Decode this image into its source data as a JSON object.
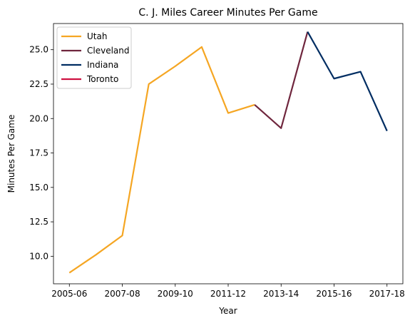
{
  "chart_data": {
    "type": "line",
    "title": "C. J. Miles Career Minutes Per Game",
    "xlabel": "Year",
    "ylabel": "Minutes Per Game",
    "x_ticks": [
      "2005-06",
      "2007-08",
      "2009-10",
      "2011-12",
      "2013-14",
      "2015-16",
      "2017-18"
    ],
    "ylim": [
      8.0,
      26.9
    ],
    "y_ticks": [
      "10.0",
      "12.5",
      "15.0",
      "17.5",
      "20.0",
      "22.5",
      "25.0"
    ],
    "y_tick_values": [
      10.0,
      12.5,
      15.0,
      17.5,
      20.0,
      22.5,
      25.0
    ],
    "grid": false,
    "legend_position": "top-left",
    "series": [
      {
        "name": "Utah",
        "color": "#f5a623",
        "points": [
          [
            0,
            8.8
          ],
          [
            1,
            10.1
          ],
          [
            2,
            11.5
          ],
          [
            3,
            22.5
          ],
          [
            4,
            23.8
          ],
          [
            5,
            25.2
          ],
          [
            6,
            20.4
          ],
          [
            7,
            21.0
          ]
        ]
      },
      {
        "name": "Cleveland",
        "color": "#6f263d",
        "points": [
          [
            7,
            21.0
          ],
          [
            8,
            19.3
          ],
          [
            9,
            26.3
          ]
        ]
      },
      {
        "name": "Indiana",
        "color": "#002d62",
        "points": [
          [
            9,
            26.3
          ],
          [
            10,
            22.9
          ],
          [
            11,
            23.4
          ],
          [
            12,
            19.1
          ]
        ]
      },
      {
        "name": "Toronto",
        "color": "#ce1141",
        "points": []
      }
    ]
  }
}
